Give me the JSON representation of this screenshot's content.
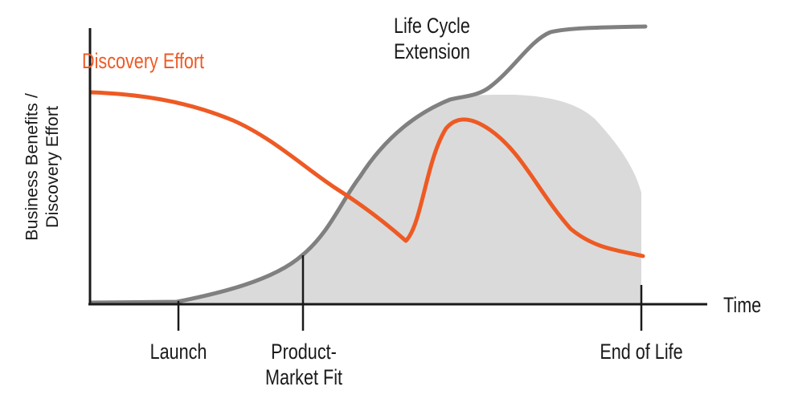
{
  "labels": {
    "discovery_effort": "Discovery Effort",
    "life_cycle_line1": "Life Cycle",
    "life_cycle_line2": "Extension",
    "time": "Time",
    "y_axis_line1": "Business Benefits /",
    "y_axis_line2": "Discovery Effort",
    "launch": "Launch",
    "pmf_line1": "Product-",
    "pmf_line2": "Market Fit",
    "end_of_life": "End of Life"
  },
  "colors": {
    "discovery_curve": "#ee5a24",
    "benefit_curve": "#808080",
    "shaded_area": "#dadada",
    "axes": "#1a1a1a"
  },
  "milestones": [
    "Launch",
    "Product-Market Fit",
    "End of Life"
  ]
}
